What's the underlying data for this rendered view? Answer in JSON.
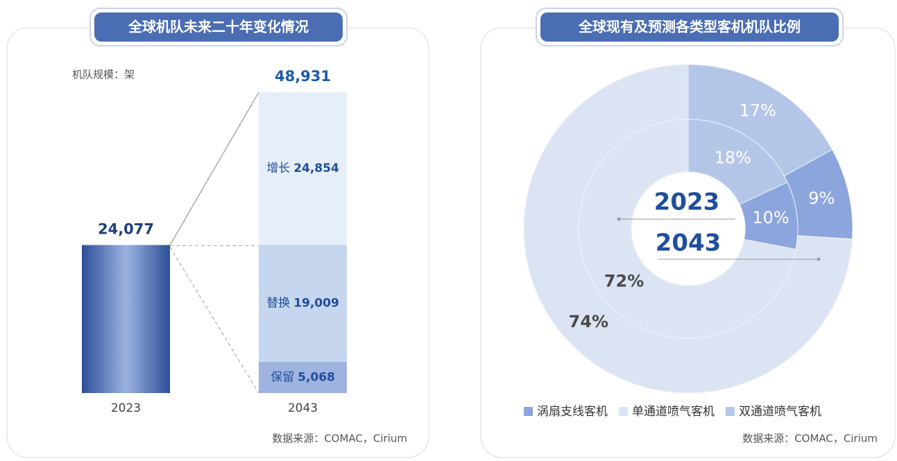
{
  "chart_data": [
    {
      "type": "stacked-bar",
      "title": "全球机队未来二十年变化情况",
      "y_label": "机队规模：架",
      "source": "数据来源：COMAC，Cirium",
      "categories": [
        "2023",
        "2043"
      ],
      "values": [
        24077,
        48931
      ],
      "value_labels": [
        "24,077",
        "48,931"
      ],
      "breakdown": [
        {
          "name": "保留",
          "value": 5068,
          "value_label": "5,068",
          "color": "#9fb3e0"
        },
        {
          "name": "替换",
          "value": 19009,
          "value_label": "19,009",
          "color": "#c6d6ee"
        },
        {
          "name": "增长",
          "value": 24854,
          "value_label": "24,854",
          "color": "#e6eef9"
        }
      ]
    },
    {
      "type": "donut",
      "title": "全球现有及预测各类型客机机队比例",
      "source": "数据来源：COMAC，Cirium",
      "series": [
        {
          "name": "涡扇支线客机",
          "color": "#8ca5dc"
        },
        {
          "name": "单通道喷气客机",
          "color": "#dce4f4"
        },
        {
          "name": "双通道喷气客机",
          "color": "#b4c6e8"
        }
      ],
      "rings": [
        {
          "label": "2023",
          "values": [
            10,
            72,
            18
          ],
          "value_labels": [
            "10%",
            "72%",
            "18%"
          ]
        },
        {
          "label": "2043",
          "values": [
            9,
            74,
            17
          ],
          "value_labels": [
            "9%",
            "74%",
            "17%"
          ]
        }
      ]
    }
  ]
}
